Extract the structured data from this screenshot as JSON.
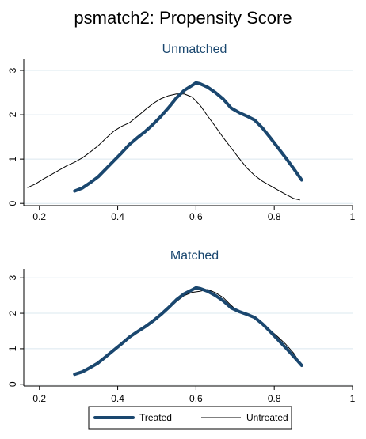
{
  "title": "psmatch2: Propensity Score",
  "colors": {
    "treated": "#1a476f",
    "untreated": "#000000",
    "panel_title": "#1a476f",
    "grid": "#dbe8ef"
  },
  "legend": {
    "treated": "Treated",
    "untreated": "Untreated"
  },
  "chart_data": [
    {
      "type": "line",
      "title": "Unmatched",
      "xlabel": "",
      "ylabel": "",
      "xlim": [
        0.16,
        1.0
      ],
      "ylim": [
        -0.05,
        3.25
      ],
      "x_ticks": [
        0.2,
        0.4,
        0.6,
        0.8,
        1
      ],
      "x_tick_labels": [
        "0.2",
        "0.4",
        "0.6",
        "0.8",
        "1"
      ],
      "y_ticks": [
        0,
        1,
        2,
        3
      ],
      "y_tick_labels": [
        "0",
        "1",
        "2",
        "3"
      ],
      "grid": true,
      "legend_position": "bottom",
      "series": [
        {
          "name": "Treated",
          "x": [
            0.29,
            0.31,
            0.33,
            0.35,
            0.37,
            0.39,
            0.41,
            0.43,
            0.45,
            0.47,
            0.49,
            0.51,
            0.53,
            0.55,
            0.57,
            0.59,
            0.6,
            0.61,
            0.63,
            0.65,
            0.67,
            0.69,
            0.71,
            0.73,
            0.75,
            0.77,
            0.79,
            0.81,
            0.83,
            0.85,
            0.87
          ],
          "y": [
            0.28,
            0.35,
            0.47,
            0.6,
            0.78,
            0.96,
            1.14,
            1.33,
            1.48,
            1.62,
            1.78,
            1.96,
            2.16,
            2.38,
            2.55,
            2.66,
            2.72,
            2.7,
            2.62,
            2.5,
            2.35,
            2.15,
            2.05,
            1.97,
            1.88,
            1.7,
            1.48,
            1.25,
            1.02,
            0.78,
            0.53
          ]
        },
        {
          "name": "Untreated",
          "x": [
            0.17,
            0.19,
            0.21,
            0.23,
            0.25,
            0.27,
            0.29,
            0.31,
            0.33,
            0.35,
            0.37,
            0.39,
            0.41,
            0.43,
            0.45,
            0.47,
            0.49,
            0.51,
            0.53,
            0.55,
            0.57,
            0.59,
            0.61,
            0.63,
            0.65,
            0.67,
            0.69,
            0.71,
            0.73,
            0.75,
            0.77,
            0.79,
            0.81,
            0.83,
            0.85,
            0.865
          ],
          "y": [
            0.36,
            0.44,
            0.55,
            0.65,
            0.75,
            0.85,
            0.93,
            1.03,
            1.16,
            1.3,
            1.47,
            1.63,
            1.74,
            1.82,
            1.96,
            2.11,
            2.25,
            2.36,
            2.43,
            2.47,
            2.47,
            2.4,
            2.22,
            1.97,
            1.73,
            1.48,
            1.25,
            1.02,
            0.8,
            0.63,
            0.5,
            0.4,
            0.3,
            0.2,
            0.11,
            0.08
          ]
        }
      ]
    },
    {
      "type": "line",
      "title": "Matched",
      "xlabel": "",
      "ylabel": "",
      "xlim": [
        0.16,
        1.0
      ],
      "ylim": [
        -0.05,
        3.25
      ],
      "x_ticks": [
        0.2,
        0.4,
        0.6,
        0.8,
        1
      ],
      "x_tick_labels": [
        "0.2",
        "0.4",
        "0.6",
        "0.8",
        "1"
      ],
      "y_ticks": [
        0,
        1,
        2,
        3
      ],
      "y_tick_labels": [
        "0",
        "1",
        "2",
        "3"
      ],
      "grid": true,
      "legend_position": "bottom",
      "series": [
        {
          "name": "Treated",
          "x": [
            0.29,
            0.31,
            0.33,
            0.35,
            0.37,
            0.39,
            0.41,
            0.43,
            0.45,
            0.47,
            0.49,
            0.51,
            0.53,
            0.55,
            0.57,
            0.59,
            0.6,
            0.61,
            0.63,
            0.65,
            0.67,
            0.69,
            0.71,
            0.73,
            0.75,
            0.77,
            0.79,
            0.81,
            0.83,
            0.85,
            0.87
          ],
          "y": [
            0.28,
            0.35,
            0.47,
            0.6,
            0.78,
            0.96,
            1.14,
            1.33,
            1.48,
            1.62,
            1.78,
            1.96,
            2.16,
            2.38,
            2.55,
            2.66,
            2.72,
            2.7,
            2.62,
            2.5,
            2.35,
            2.15,
            2.05,
            1.97,
            1.88,
            1.7,
            1.48,
            1.25,
            1.02,
            0.78,
            0.53
          ]
        },
        {
          "name": "Untreated",
          "x": [
            0.29,
            0.31,
            0.33,
            0.35,
            0.37,
            0.39,
            0.41,
            0.43,
            0.45,
            0.47,
            0.49,
            0.51,
            0.53,
            0.55,
            0.57,
            0.59,
            0.61,
            0.63,
            0.65,
            0.67,
            0.69,
            0.71,
            0.73,
            0.75,
            0.77,
            0.79,
            0.81,
            0.83,
            0.85,
            0.87
          ],
          "y": [
            0.28,
            0.37,
            0.5,
            0.63,
            0.8,
            0.98,
            1.14,
            1.3,
            1.46,
            1.6,
            1.76,
            1.93,
            2.13,
            2.33,
            2.5,
            2.59,
            2.62,
            2.67,
            2.58,
            2.44,
            2.22,
            2.03,
            1.96,
            1.86,
            1.7,
            1.52,
            1.33,
            1.12,
            0.87,
            0.53
          ]
        }
      ]
    }
  ]
}
